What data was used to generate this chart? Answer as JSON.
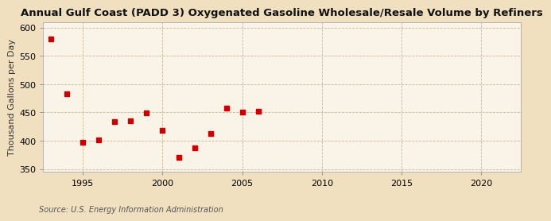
{
  "title": "Annual Gulf Coast (PADD 3) Oxygenated Gasoline Wholesale/Resale Volume by Refiners",
  "ylabel": "Thousand Gallons per Day",
  "source": "Source: U.S. Energy Information Administration",
  "background_color": "#f0e0c0",
  "plot_background_color": "#faf4e8",
  "grid_color": "#c8b89a",
  "marker_color": "#cc0000",
  "years": [
    1993,
    1994,
    1995,
    1996,
    1997,
    1998,
    1999,
    2000,
    2001,
    2002,
    2003,
    2004,
    2005,
    2006
  ],
  "values": [
    580,
    483,
    397,
    401,
    434,
    435,
    449,
    418,
    370,
    387,
    413,
    457,
    451,
    452
  ],
  "xlim": [
    1992.5,
    2022.5
  ],
  "ylim": [
    345,
    610
  ],
  "yticks": [
    350,
    400,
    450,
    500,
    550,
    600
  ],
  "xticks": [
    1995,
    2000,
    2005,
    2010,
    2015,
    2020
  ],
  "title_fontsize": 9.5,
  "label_fontsize": 8,
  "tick_fontsize": 8,
  "source_fontsize": 7,
  "marker_size": 4.5
}
